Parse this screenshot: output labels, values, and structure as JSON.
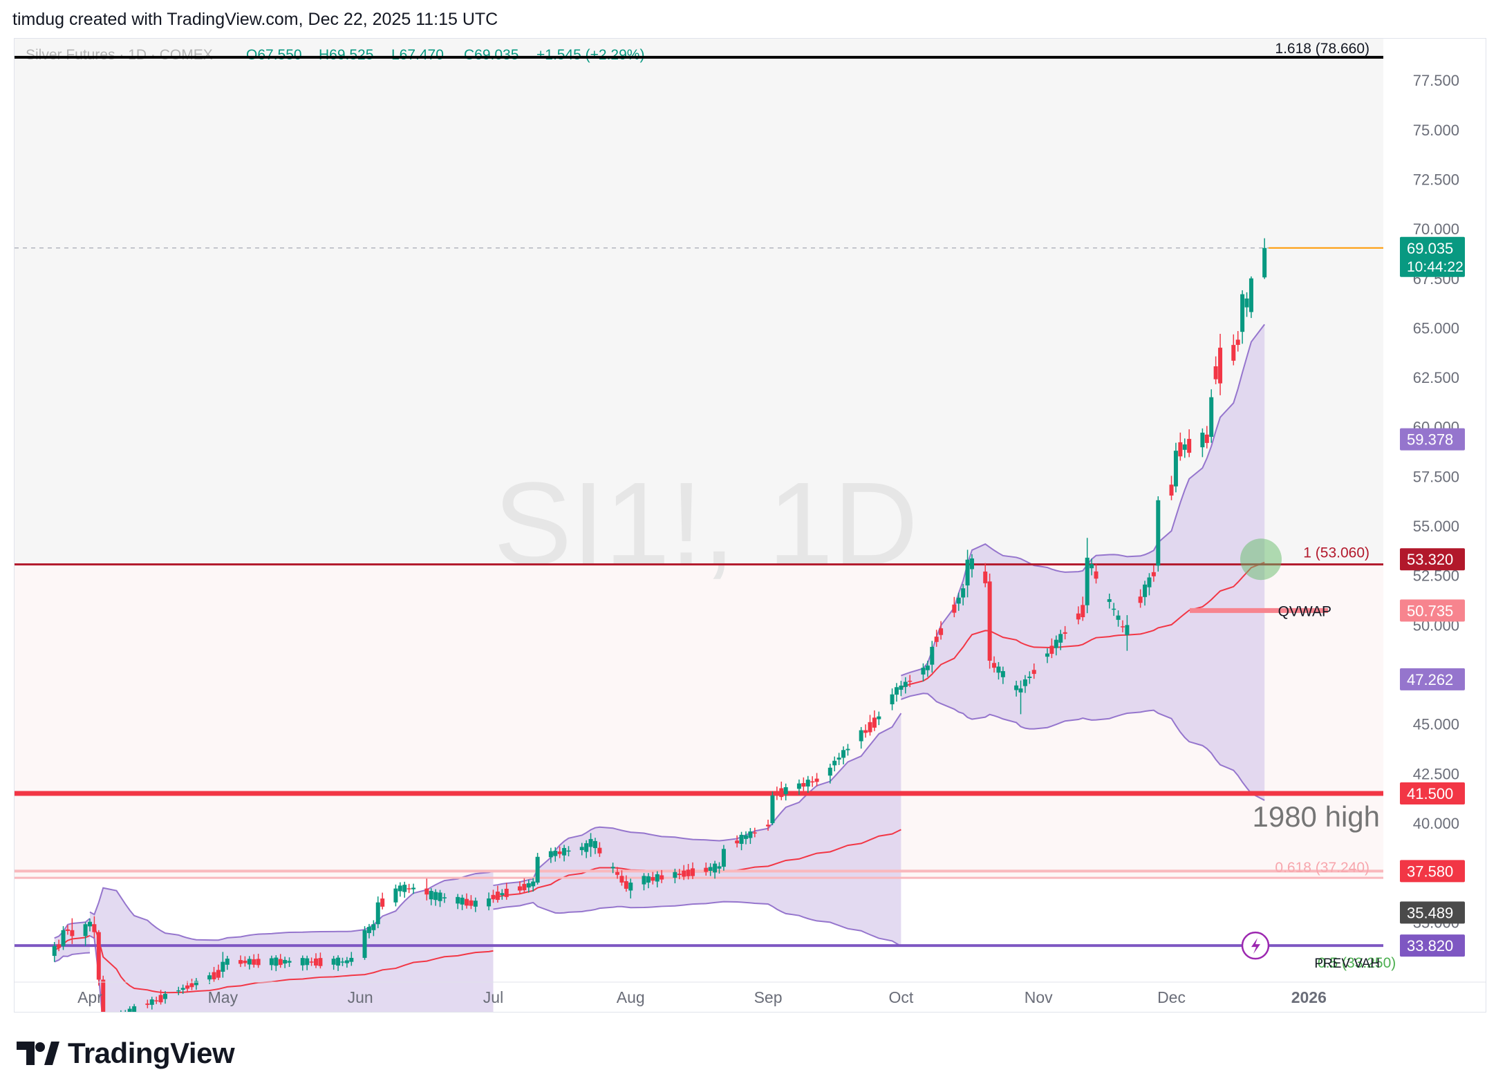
{
  "header": {
    "attribution": "timdug created with TradingView.com, Dec 22, 2025 11:15 UTC"
  },
  "footer": {
    "brand": "TradingView"
  },
  "legend": {
    "symbol": "Silver Futures · 1D · COMEX",
    "open": "O67.550",
    "high": "H69.525",
    "low": "L67.470",
    "close": "C69.035",
    "change": "+1.545 (+2.29%)"
  },
  "watermark": "SI1!, 1D",
  "colors": {
    "up": "#089981",
    "down": "#f23645",
    "band_fill": "#d9cdec",
    "band_line": "#9575cd",
    "vwap": "#f23645",
    "level_red": "#f23645",
    "level_darkred": "#b2182b",
    "level_purple": "#9c27b0",
    "price_green": "#089981",
    "orange": "#ff9800"
  },
  "price_axis": {
    "ticks": [
      "77.500",
      "75.000",
      "72.500",
      "70.000",
      "67.500",
      "65.000",
      "62.500",
      "60.000",
      "57.500",
      "55.000",
      "52.500",
      "50.000",
      "45.000",
      "42.500",
      "40.000",
      "35.000"
    ],
    "labels": [
      {
        "text": "69.035",
        "sub": "10:44:22",
        "value": 69.035,
        "color": "#089981"
      },
      {
        "text": "59.378",
        "value": 59.378,
        "color": "#9575cd"
      },
      {
        "text": "53.320",
        "value": 53.32,
        "color": "#b2182b"
      },
      {
        "text": "50.735",
        "value": 50.735,
        "color": "#f7848e"
      },
      {
        "text": "47.262",
        "value": 47.262,
        "color": "#9575cd"
      },
      {
        "text": "41.500",
        "value": 41.5,
        "color": "#f23645"
      },
      {
        "text": "37.580",
        "value": 37.58,
        "color": "#f23645"
      },
      {
        "text": "35.489",
        "value": 35.489,
        "color": "#4a4a4a"
      },
      {
        "text": "33.820",
        "value": 33.82,
        "color": "#7e57c2"
      }
    ]
  },
  "time_axis": {
    "labels": [
      "Apr",
      "May",
      "Jun",
      "Jul",
      "Aug",
      "Sep",
      "Oct",
      "Nov",
      "Dec",
      "2026"
    ]
  },
  "annotations": {
    "fib_1618": "1.618 (78.660)",
    "fib_1": "1 (53.060)",
    "fib_0618": "0.618 (37.240)",
    "fib_05": "0.5 (33.250)",
    "qvwap": "QVWAP",
    "high_1980": "1980 high",
    "prev_vah": "PREV VAH"
  },
  "chart_data": {
    "type": "candlestick",
    "symbol": "SI1!",
    "interval": "1D",
    "ylim": [
      32.5,
      78.9
    ],
    "ohlc_approx": [
      {
        "date": "2025-03-24",
        "o": 33.3,
        "h": 34.0,
        "l": 33.0,
        "c": 33.8
      },
      {
        "date": "2025-03-26",
        "o": 33.8,
        "h": 34.8,
        "l": 33.6,
        "c": 34.6
      },
      {
        "date": "2025-03-28",
        "o": 34.6,
        "h": 35.2,
        "l": 33.9,
        "c": 34.3
      },
      {
        "date": "2025-03-31",
        "o": 34.3,
        "h": 35.0,
        "l": 33.8,
        "c": 34.9
      },
      {
        "date": "2025-04-02",
        "o": 34.9,
        "h": 35.3,
        "l": 34.2,
        "c": 34.5
      },
      {
        "date": "2025-04-03",
        "o": 34.5,
        "h": 34.6,
        "l": 31.8,
        "c": 32.1
      },
      {
        "date": "2025-04-04",
        "o": 32.1,
        "h": 32.3,
        "l": 29.5,
        "c": 29.9
      },
      {
        "date": "2025-05-01",
        "o": 32.5,
        "h": 33.5,
        "l": 32.2,
        "c": 33.0
      },
      {
        "date": "2025-05-30",
        "o": 33.0,
        "h": 33.5,
        "l": 32.8,
        "c": 33.2
      },
      {
        "date": "2025-06-02",
        "o": 33.2,
        "h": 34.8,
        "l": 33.1,
        "c": 34.6
      },
      {
        "date": "2025-06-04",
        "o": 34.6,
        "h": 35.1,
        "l": 34.3,
        "c": 34.9
      },
      {
        "date": "2025-06-05",
        "o": 34.9,
        "h": 36.3,
        "l": 34.7,
        "c": 36.0
      },
      {
        "date": "2025-06-09",
        "o": 36.0,
        "h": 36.9,
        "l": 35.8,
        "c": 36.7
      },
      {
        "date": "2025-06-16",
        "o": 36.7,
        "h": 37.2,
        "l": 36.1,
        "c": 36.4
      },
      {
        "date": "2025-06-30",
        "o": 35.8,
        "h": 36.5,
        "l": 35.6,
        "c": 36.2
      },
      {
        "date": "2025-07-11",
        "o": 37.0,
        "h": 38.5,
        "l": 36.9,
        "c": 38.3
      },
      {
        "date": "2025-07-23",
        "o": 38.8,
        "h": 39.5,
        "l": 38.3,
        "c": 39.2
      },
      {
        "date": "2025-08-01",
        "o": 36.6,
        "h": 37.2,
        "l": 36.2,
        "c": 37.0
      },
      {
        "date": "2025-08-22",
        "o": 37.8,
        "h": 38.9,
        "l": 37.6,
        "c": 38.7
      },
      {
        "date": "2025-09-02",
        "o": 40.0,
        "h": 41.6,
        "l": 39.9,
        "c": 41.4
      },
      {
        "date": "2025-09-15",
        "o": 42.4,
        "h": 43.0,
        "l": 42.0,
        "c": 42.8
      },
      {
        "date": "2025-09-29",
        "o": 46.0,
        "h": 46.8,
        "l": 45.7,
        "c": 46.5
      },
      {
        "date": "2025-10-08",
        "o": 48.0,
        "h": 49.2,
        "l": 47.6,
        "c": 48.9
      },
      {
        "date": "2025-10-16",
        "o": 52.0,
        "h": 53.8,
        "l": 51.4,
        "c": 53.3
      },
      {
        "date": "2025-10-21",
        "o": 52.2,
        "h": 52.6,
        "l": 47.8,
        "c": 48.2
      },
      {
        "date": "2025-10-28",
        "o": 46.6,
        "h": 47.2,
        "l": 45.5,
        "c": 46.8
      },
      {
        "date": "2025-11-12",
        "o": 51.0,
        "h": 54.4,
        "l": 50.6,
        "c": 53.4
      },
      {
        "date": "2025-11-21",
        "o": 49.5,
        "h": 50.5,
        "l": 48.7,
        "c": 50.0
      },
      {
        "date": "2025-11-28",
        "o": 53.0,
        "h": 56.5,
        "l": 52.7,
        "c": 56.3
      },
      {
        "date": "2025-12-02",
        "o": 57.0,
        "h": 59.2,
        "l": 56.7,
        "c": 58.8
      },
      {
        "date": "2025-12-10",
        "o": 59.5,
        "h": 61.9,
        "l": 59.2,
        "c": 61.5
      },
      {
        "date": "2025-12-12",
        "o": 64.0,
        "h": 64.7,
        "l": 61.6,
        "c": 62.2
      },
      {
        "date": "2025-12-17",
        "o": 64.8,
        "h": 66.9,
        "l": 64.2,
        "c": 66.7
      },
      {
        "date": "2025-12-19",
        "o": 65.8,
        "h": 67.6,
        "l": 65.5,
        "c": 67.5
      },
      {
        "date": "2025-12-22",
        "o": 67.55,
        "h": 69.525,
        "l": 67.47,
        "c": 69.035
      }
    ],
    "horizontal_levels": [
      {
        "value": 78.66,
        "label": "1.618 (78.660)"
      },
      {
        "value": 53.06,
        "label": "1 (53.060)"
      },
      {
        "value": 50.735,
        "label": "QVWAP"
      },
      {
        "value": 41.5,
        "label": "1980 high"
      },
      {
        "value": 37.24,
        "label": "0.618 (37.240)"
      },
      {
        "value": 33.82,
        "label": "PREV VAH"
      }
    ],
    "band_upper_end": 59.378,
    "band_lower_end": 47.262,
    "vwap_end": 53.32
  }
}
